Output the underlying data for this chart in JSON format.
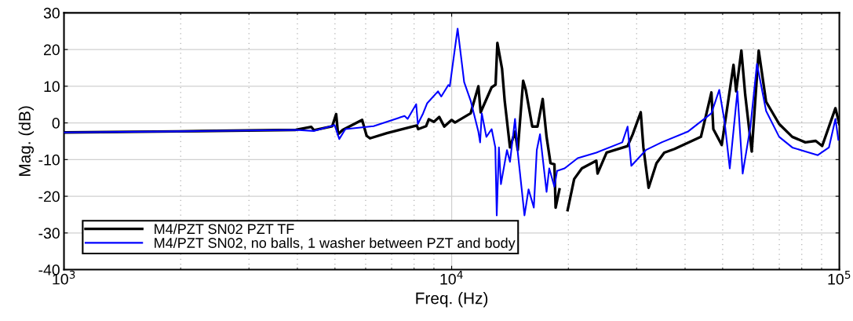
{
  "chart_data": {
    "type": "line",
    "xlabel": "Freq. (Hz)",
    "ylabel": "Mag. (dB)",
    "log": "x",
    "grid": true,
    "legend": "bottom left",
    "line_style": "solid",
    "xlim": [
      1000,
      100000
    ],
    "xticks": [
      {
        "value": 1000,
        "label": "10$^{3}$"
      },
      {
        "value": 10000,
        "label": "10$^{4}$"
      },
      {
        "value": 100000,
        "label": "10$^{5}$"
      }
    ],
    "ylim": [
      -40,
      30
    ],
    "yticks": [
      -40,
      -30,
      -20,
      -10,
      0,
      10,
      20,
      30
    ],
    "series": [
      {
        "name": "M4/PZT SN02 PZT TF",
        "color": "#000000",
        "x": [
          1000,
          1972,
          3963,
          4345,
          4416,
          4920,
          5036,
          5093,
          5236,
          5877,
          6035,
          6156,
          6806,
          8130,
          8199,
          8590,
          8730,
          9000,
          9290,
          9570,
          10000,
          10200,
          11190,
          11720,
          11880,
          12680,
          12980,
          13120,
          13490,
          13700,
          14140,
          14570,
          14810,
          15290,
          15530,
          16140,
          16650,
          17170,
          17570,
          17990,
          18410,
          18540,
          18970,
          19400,
          19910,
          20700,
          21670,
          23610,
          23790,
          25100,
          28430,
          29310,
          30740,
          31230,
          32210,
          33750,
          35350,
          37580,
          43950,
          46770,
          47310,
          49730,
          53330,
          54180,
          55880,
          57180,
          59430,
          61940,
          64710,
          69940,
          75620,
          81700,
          86900,
          90300,
          97700,
          100000
        ],
        "values": [
          -2.6,
          -2.3,
          -1.9,
          -1.1,
          -2.0,
          -0.9,
          2.4,
          -3.1,
          -1.9,
          0.8,
          -3.5,
          -4.2,
          -2.8,
          -0.7,
          -1.7,
          -0.9,
          1.0,
          0.3,
          1.6,
          -1.0,
          0.8,
          0.1,
          2.6,
          10.0,
          2.9,
          9.7,
          10.4,
          21.8,
          14.7,
          6.1,
          -6.7,
          -2.4,
          -7.4,
          11.5,
          9.0,
          -1.0,
          -1.0,
          6.5,
          -3.8,
          -11.0,
          -11.3,
          -23.1,
          -18.1,
          null,
          -23.8,
          -15.3,
          -12.4,
          -10.3,
          -13.8,
          -8.1,
          -6.3,
          -3.1,
          2.9,
          -6.7,
          -17.7,
          -11.0,
          -8.1,
          -7.1,
          -3.8,
          8.3,
          -1.7,
          -6.0,
          15.8,
          8.6,
          19.7,
          7.6,
          -7.8,
          19.7,
          5.8,
          -0.3,
          -3.8,
          -5.3,
          -4.9,
          -6.3,
          4.0,
          -0.3
        ]
      },
      {
        "name": "M4/PZT SN02, no balls, 1 washer between PZT and body",
        "color": "#0000ff",
        "x": [
          1000,
          1972,
          3963,
          4416,
          4990,
          5130,
          5320,
          6290,
          7560,
          7700,
          8100,
          8180,
          8440,
          8640,
          9220,
          9400,
          9800,
          9890,
          10360,
          10770,
          11190,
          11720,
          11840,
          11960,
          12290,
          12680,
          12960,
          13070,
          13240,
          13400,
          13890,
          14140,
          14570,
          14810,
          15160,
          15410,
          15790,
          16290,
          16580,
          16900,
          17570,
          17850,
          18410,
          18700,
          19560,
          21140,
          23610,
          27550,
          28430,
          29070,
          31700,
          34800,
          40640,
          46770,
          49000,
          50570,
          52160,
          54580,
          56320,
          58970,
          61300,
          64710,
          69940,
          75620,
          81700,
          88000,
          94000,
          97700,
          99400
        ],
        "values": [
          -2.6,
          -2.3,
          -1.9,
          -2.2,
          -0.6,
          -4.4,
          -1.7,
          -0.9,
          1.9,
          1.1,
          5.1,
          -0.3,
          2.6,
          5.3,
          8.6,
          7.2,
          10.3,
          10.0,
          25.7,
          11.1,
          6.1,
          -2.4,
          -5.3,
          2.6,
          -3.8,
          -1.7,
          -6.7,
          -25.2,
          -6.7,
          -16.7,
          -7.4,
          -10.6,
          1.1,
          -8.1,
          -18.1,
          -25.2,
          -18.1,
          -23.1,
          -7.4,
          -3.1,
          -18.8,
          -12.4,
          -17.4,
          -13.1,
          -12.4,
          -9.6,
          -8.1,
          -5.3,
          -1.0,
          -11.7,
          -7.4,
          -5.3,
          -2.4,
          2.6,
          9.0,
          0.4,
          -12.4,
          8.6,
          -13.8,
          -1.0,
          16.1,
          3.3,
          -3.8,
          -6.7,
          -7.8,
          -8.8,
          -6.7,
          1.1,
          -4.6
        ]
      }
    ]
  }
}
